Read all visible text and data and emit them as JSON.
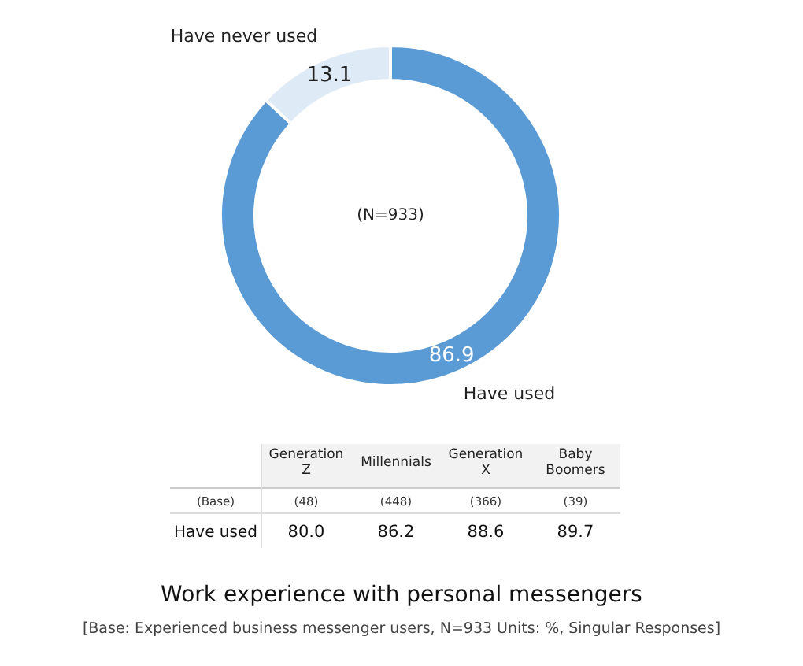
{
  "chart_data": [
    {
      "type": "donut",
      "title": "Work experience with personal messengers",
      "subtitle": "[Base: Experienced business messenger users, N=933 Units: %, Singular Responses]",
      "categories": [
        "Have used",
        "Have never used"
      ],
      "values": [
        86.9,
        13.1
      ],
      "colors": [
        "#5b9bd5",
        "#deeaf6"
      ],
      "data_labels": true,
      "annotations": [
        "(N=933)"
      ]
    },
    {
      "type": "other",
      "categories": [
        "Generation\nZ",
        "Millennials",
        "Generation\nX",
        "Baby\nBoomers"
      ],
      "values": [
        80.0,
        86.2,
        88.6,
        89.7
      ],
      "value_labels": [
        "80.0",
        "86.2",
        "88.6",
        "89.7"
      ],
      "annotations": [
        "(Base)",
        "(48)",
        "(448)",
        "(366)",
        "(39)",
        "Have used"
      ]
    }
  ]
}
